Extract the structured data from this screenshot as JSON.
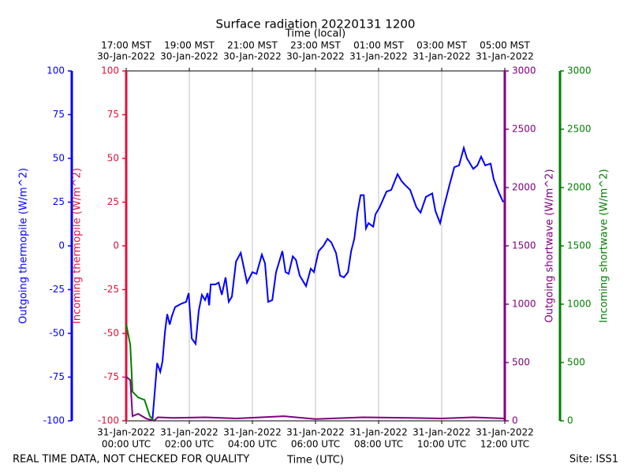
{
  "chart_data": {
    "type": "line",
    "title": "Surface radiation 20220131 1200",
    "xlabel": "Time (UTC)",
    "x2label": "Time (local)",
    "footer_left": "REAL TIME DATA, NOT CHECKED FOR QUALITY",
    "footer_right": "Site: ISS1",
    "grid": true,
    "xlim": [
      0,
      12
    ],
    "xticks": [
      {
        "value": 0,
        "label": [
          "31-Jan-2022",
          "00:00 UTC"
        ]
      },
      {
        "value": 2,
        "label": [
          "31-Jan-2022",
          "02:00 UTC"
        ]
      },
      {
        "value": 4,
        "label": [
          "31-Jan-2022",
          "04:00 UTC"
        ]
      },
      {
        "value": 6,
        "label": [
          "31-Jan-2022",
          "06:00 UTC"
        ]
      },
      {
        "value": 8,
        "label": [
          "31-Jan-2022",
          "08:00 UTC"
        ]
      },
      {
        "value": 10,
        "label": [
          "31-Jan-2022",
          "10:00 UTC"
        ]
      },
      {
        "value": 12,
        "label": [
          "31-Jan-2022",
          "12:00 UTC"
        ]
      }
    ],
    "x2ticks": [
      {
        "value": 0,
        "label": [
          "17:00 MST",
          "30-Jan-2022"
        ]
      },
      {
        "value": 2,
        "label": [
          "19:00 MST",
          "30-Jan-2022"
        ]
      },
      {
        "value": 4,
        "label": [
          "21:00 MST",
          "30-Jan-2022"
        ]
      },
      {
        "value": 6,
        "label": [
          "23:00 MST",
          "30-Jan-2022"
        ]
      },
      {
        "value": 8,
        "label": [
          "01:00 MST",
          "31-Jan-2022"
        ]
      },
      {
        "value": 10,
        "label": [
          "03:00 MST",
          "31-Jan-2022"
        ]
      },
      {
        "value": 12,
        "label": [
          "05:00 MST",
          "31-Jan-2022"
        ]
      }
    ],
    "axes": [
      {
        "label": "Outgoing thermopile (W/m^2)",
        "color": "#0000ff",
        "side": "left",
        "ylim": [
          -100,
          100
        ],
        "yticks": [
          -100,
          -75,
          -50,
          -25,
          0,
          25,
          50,
          75,
          100
        ]
      },
      {
        "label": "Incoming thermopile (W/m^2)",
        "color": "#dc143c",
        "side": "left",
        "ylim": [
          -100,
          100
        ],
        "yticks": [
          -100,
          -75,
          -50,
          -25,
          0,
          25,
          50,
          75,
          100
        ]
      },
      {
        "label": "Outgoing shortwave (W/m^2)",
        "color": "#800080",
        "side": "right",
        "ylim": [
          0,
          3000
        ],
        "yticks": [
          0,
          500,
          1000,
          1500,
          2000,
          2500,
          3000
        ]
      },
      {
        "label": "Incoming shortwave (W/m^2)",
        "color": "#008000",
        "side": "right",
        "ylim": [
          0,
          3000
        ],
        "yticks": [
          0,
          500,
          1000,
          1500,
          2000,
          2500,
          3000
        ]
      }
    ],
    "series": [
      {
        "color": "#0000ff",
        "axis": 0,
        "x": [
          0.83,
          0.98,
          1.08,
          1.15,
          1.23,
          1.3,
          1.38,
          1.45,
          1.55,
          1.75,
          1.9,
          1.98,
          2.08,
          2.2,
          2.3,
          2.4,
          2.5,
          2.58,
          2.63,
          2.68,
          2.83,
          2.93,
          3.03,
          3.15,
          3.25,
          3.35,
          3.48,
          3.63,
          3.83,
          4.0,
          4.13,
          4.3,
          4.4,
          4.5,
          4.63,
          4.75,
          4.95,
          5.05,
          5.15,
          5.28,
          5.38,
          5.5,
          5.7,
          5.85,
          5.95,
          6.1,
          6.25,
          6.38,
          6.5,
          6.65,
          6.78,
          6.9,
          7.03,
          7.13,
          7.23,
          7.33,
          7.43,
          7.53,
          7.6,
          7.68,
          7.83,
          7.9,
          8.03,
          8.25,
          8.4,
          8.6,
          8.73,
          8.83,
          9.0,
          9.2,
          9.33,
          9.5,
          9.7,
          9.8,
          9.95,
          10.08,
          10.25,
          10.4,
          10.55,
          10.7,
          10.8,
          11.0,
          11.13,
          11.25,
          11.38,
          11.55,
          11.65,
          11.8,
          11.95
        ],
        "values": [
          -100,
          -67,
          -72,
          -66,
          -49,
          -39,
          -45,
          -40,
          -35,
          -33,
          -32,
          -27,
          -53,
          -56,
          -37,
          -28,
          -31,
          -27,
          -34,
          -22,
          -22,
          -21,
          -28,
          -18,
          -32,
          -29,
          -9,
          -4,
          -21,
          -15,
          -16,
          -5,
          -10,
          -32,
          -31,
          -15,
          -3,
          -15,
          -16,
          -6,
          -8,
          -17,
          -23,
          -13,
          -15,
          -3,
          0,
          4,
          2,
          -4,
          -17,
          -18,
          -15,
          -3,
          4,
          19,
          29,
          29,
          10,
          13,
          11,
          18,
          22,
          31,
          32,
          41,
          37,
          35,
          32,
          22,
          19,
          28,
          30,
          20,
          13,
          23,
          35,
          45,
          46,
          56,
          50,
          44,
          46,
          51,
          46,
          47,
          38,
          31,
          25
        ]
      },
      {
        "color": "#800080",
        "axis": 2,
        "x": [
          0,
          0.13,
          0.2,
          0.38,
          0.63,
          0.88,
          1,
          1.5,
          2.5,
          3.5,
          5,
          6,
          7.5,
          9,
          10,
          11,
          12
        ],
        "values": [
          378,
          350,
          40,
          60,
          20,
          0,
          30,
          25,
          30,
          20,
          40,
          15,
          30,
          25,
          20,
          30,
          20
        ]
      },
      {
        "color": "#008000",
        "axis": 3,
        "x": [
          0,
          0.13,
          0.2,
          0.38,
          0.58,
          0.75,
          0.88
        ],
        "values": [
          830,
          650,
          250,
          200,
          180,
          40,
          0
        ]
      }
    ]
  }
}
